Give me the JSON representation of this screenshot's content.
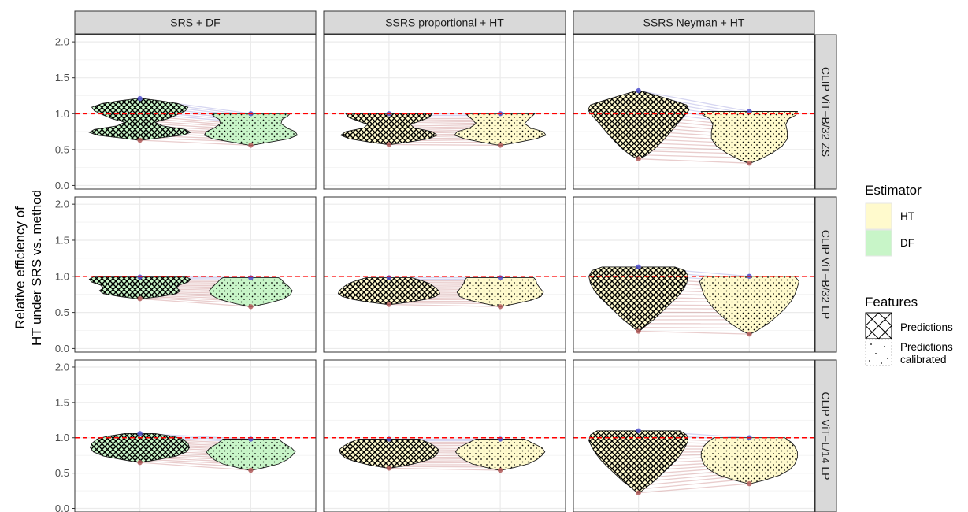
{
  "chart_data": {
    "type": "violin",
    "ylabel": [
      "Relative efficiency of",
      "HT under SRS vs. method"
    ],
    "ylim": [
      -0.05,
      2.1
    ],
    "yticks": [
      0.0,
      0.5,
      1.0,
      1.5,
      2.0
    ],
    "ytick_labels": [
      "0.0",
      "0.5",
      "1.0",
      "1.5",
      "2.0"
    ],
    "reference_line": {
      "y": 1.0,
      "color": "#ff0000",
      "style": "dashed"
    },
    "columns": [
      "SRS + DF",
      "SSRS proportional + HT",
      "SSRS Neyman + HT"
    ],
    "rows": [
      "CLIP ViT−B/32 ZS",
      "CLIP ViT−B/32 LP",
      "CLIP ViT−L/14 LP"
    ],
    "legends": [
      {
        "title": "Estimator",
        "items": [
          {
            "label": "HT",
            "fill": "#fffacd"
          },
          {
            "label": "DF",
            "fill": "#c8f5c8"
          }
        ]
      },
      {
        "title": "Features",
        "items": [
          {
            "label": "Predictions",
            "pattern": "crosshatch"
          },
          {
            "label": "Predictions calibrated",
            "lines": [
              "Predictions",
              "calibrated"
            ],
            "pattern": "dots"
          }
        ]
      }
    ],
    "panels": [
      {
        "row": 0,
        "col": 0,
        "estimator": "DF",
        "left": {
          "min": 0.63,
          "max": 1.21,
          "profile": [
            [
              0.63,
              0.02
            ],
            [
              0.66,
              0.35
            ],
            [
              0.7,
              0.85
            ],
            [
              0.74,
              1.0
            ],
            [
              0.78,
              0.9
            ],
            [
              0.83,
              0.45
            ],
            [
              0.88,
              0.3
            ],
            [
              0.93,
              0.55
            ],
            [
              0.98,
              0.72
            ],
            [
              1.04,
              0.9
            ],
            [
              1.09,
              0.95
            ],
            [
              1.14,
              0.75
            ],
            [
              1.18,
              0.4
            ],
            [
              1.21,
              0.05
            ]
          ]
        },
        "right": {
          "min": 0.56,
          "max": 1.0,
          "profile": [
            [
              0.56,
              0.02
            ],
            [
              0.6,
              0.35
            ],
            [
              0.65,
              0.75
            ],
            [
              0.7,
              0.92
            ],
            [
              0.75,
              0.88
            ],
            [
              0.8,
              0.72
            ],
            [
              0.86,
              0.6
            ],
            [
              0.92,
              0.62
            ],
            [
              0.96,
              0.72
            ],
            [
              1.0,
              0.78
            ]
          ]
        }
      },
      {
        "row": 0,
        "col": 1,
        "estimator": "HT",
        "left": {
          "min": 0.57,
          "max": 1.0,
          "profile": [
            [
              0.57,
              0.02
            ],
            [
              0.6,
              0.35
            ],
            [
              0.65,
              0.78
            ],
            [
              0.7,
              0.95
            ],
            [
              0.75,
              0.85
            ],
            [
              0.8,
              0.5
            ],
            [
              0.85,
              0.42
            ],
            [
              0.9,
              0.62
            ],
            [
              0.95,
              0.8
            ],
            [
              1.0,
              0.85
            ]
          ]
        },
        "right": {
          "min": 0.56,
          "max": 1.0,
          "profile": [
            [
              0.56,
              0.02
            ],
            [
              0.6,
              0.35
            ],
            [
              0.65,
              0.7
            ],
            [
              0.7,
              0.9
            ],
            [
              0.75,
              0.85
            ],
            [
              0.8,
              0.6
            ],
            [
              0.86,
              0.48
            ],
            [
              0.92,
              0.55
            ],
            [
              0.96,
              0.62
            ],
            [
              1.0,
              0.68
            ]
          ]
        }
      },
      {
        "row": 0,
        "col": 2,
        "estimator": "HT",
        "left": {
          "min": 0.37,
          "max": 1.32,
          "profile": [
            [
              0.37,
              0.02
            ],
            [
              0.42,
              0.15
            ],
            [
              0.5,
              0.3
            ],
            [
              0.6,
              0.45
            ],
            [
              0.7,
              0.58
            ],
            [
              0.8,
              0.7
            ],
            [
              0.9,
              0.82
            ],
            [
              0.98,
              0.92
            ],
            [
              1.05,
              1.0
            ],
            [
              1.12,
              0.95
            ],
            [
              1.18,
              0.7
            ],
            [
              1.24,
              0.42
            ],
            [
              1.29,
              0.18
            ],
            [
              1.32,
              0.02
            ]
          ]
        },
        "right": {
          "min": 0.31,
          "max": 1.03,
          "profile": [
            [
              0.31,
              0.02
            ],
            [
              0.36,
              0.2
            ],
            [
              0.45,
              0.45
            ],
            [
              0.55,
              0.65
            ],
            [
              0.65,
              0.75
            ],
            [
              0.75,
              0.75
            ],
            [
              0.85,
              0.72
            ],
            [
              0.93,
              0.78
            ],
            [
              0.98,
              0.92
            ],
            [
              1.03,
              0.95
            ]
          ]
        }
      },
      {
        "row": 1,
        "col": 0,
        "estimator": "DF",
        "left": {
          "min": 0.69,
          "max": 0.99,
          "profile": [
            [
              0.69,
              0.05
            ],
            [
              0.72,
              0.4
            ],
            [
              0.76,
              0.72
            ],
            [
              0.8,
              0.8
            ],
            [
              0.84,
              0.72
            ],
            [
              0.88,
              0.78
            ],
            [
              0.92,
              0.95
            ],
            [
              0.96,
              1.0
            ],
            [
              0.99,
              0.92
            ]
          ]
        },
        "right": {
          "min": 0.58,
          "max": 0.98,
          "profile": [
            [
              0.58,
              0.02
            ],
            [
              0.62,
              0.3
            ],
            [
              0.68,
              0.62
            ],
            [
              0.74,
              0.78
            ],
            [
              0.8,
              0.82
            ],
            [
              0.86,
              0.75
            ],
            [
              0.92,
              0.65
            ],
            [
              0.96,
              0.6
            ],
            [
              0.98,
              0.55
            ]
          ]
        }
      },
      {
        "row": 1,
        "col": 1,
        "estimator": "HT",
        "left": {
          "min": 0.61,
          "max": 0.98,
          "profile": [
            [
              0.61,
              0.03
            ],
            [
              0.64,
              0.38
            ],
            [
              0.68,
              0.72
            ],
            [
              0.72,
              0.92
            ],
            [
              0.76,
              1.0
            ],
            [
              0.8,
              0.98
            ],
            [
              0.85,
              0.9
            ],
            [
              0.9,
              0.8
            ],
            [
              0.94,
              0.65
            ],
            [
              0.98,
              0.45
            ]
          ]
        },
        "right": {
          "min": 0.58,
          "max": 0.98,
          "profile": [
            [
              0.58,
              0.02
            ],
            [
              0.62,
              0.3
            ],
            [
              0.67,
              0.62
            ],
            [
              0.72,
              0.8
            ],
            [
              0.78,
              0.85
            ],
            [
              0.84,
              0.78
            ],
            [
              0.9,
              0.72
            ],
            [
              0.95,
              0.7
            ],
            [
              0.98,
              0.66
            ]
          ]
        }
      },
      {
        "row": 1,
        "col": 2,
        "estimator": "HT",
        "left": {
          "min": 0.24,
          "max": 1.13,
          "profile": [
            [
              0.24,
              0.02
            ],
            [
              0.3,
              0.12
            ],
            [
              0.4,
              0.3
            ],
            [
              0.5,
              0.45
            ],
            [
              0.6,
              0.6
            ],
            [
              0.7,
              0.75
            ],
            [
              0.8,
              0.87
            ],
            [
              0.9,
              0.95
            ],
            [
              1.0,
              0.98
            ],
            [
              1.08,
              0.92
            ],
            [
              1.13,
              0.72
            ]
          ]
        },
        "right": {
          "min": 0.2,
          "max": 1.0,
          "profile": [
            [
              0.2,
              0.02
            ],
            [
              0.26,
              0.18
            ],
            [
              0.35,
              0.38
            ],
            [
              0.45,
              0.55
            ],
            [
              0.55,
              0.7
            ],
            [
              0.65,
              0.82
            ],
            [
              0.75,
              0.9
            ],
            [
              0.85,
              0.95
            ],
            [
              0.93,
              0.98
            ],
            [
              1.0,
              0.9
            ]
          ]
        }
      },
      {
        "row": 2,
        "col": 0,
        "estimator": "DF",
        "left": {
          "min": 0.65,
          "max": 1.06,
          "profile": [
            [
              0.65,
              0.02
            ],
            [
              0.69,
              0.35
            ],
            [
              0.74,
              0.72
            ],
            [
              0.8,
              0.92
            ],
            [
              0.86,
              0.98
            ],
            [
              0.92,
              0.95
            ],
            [
              0.98,
              0.85
            ],
            [
              1.02,
              0.65
            ],
            [
              1.06,
              0.3
            ]
          ]
        },
        "right": {
          "min": 0.54,
          "max": 0.98,
          "profile": [
            [
              0.54,
              0.02
            ],
            [
              0.58,
              0.28
            ],
            [
              0.63,
              0.55
            ],
            [
              0.69,
              0.72
            ],
            [
              0.75,
              0.82
            ],
            [
              0.8,
              0.88
            ],
            [
              0.86,
              0.8
            ],
            [
              0.92,
              0.65
            ],
            [
              0.98,
              0.55
            ]
          ]
        }
      },
      {
        "row": 2,
        "col": 1,
        "estimator": "HT",
        "left": {
          "min": 0.57,
          "max": 0.98,
          "profile": [
            [
              0.57,
              0.03
            ],
            [
              0.61,
              0.35
            ],
            [
              0.66,
              0.65
            ],
            [
              0.71,
              0.85
            ],
            [
              0.77,
              0.95
            ],
            [
              0.83,
              0.98
            ],
            [
              0.88,
              0.9
            ],
            [
              0.93,
              0.78
            ],
            [
              0.98,
              0.6
            ]
          ]
        },
        "right": {
          "min": 0.54,
          "max": 0.98,
          "profile": [
            [
              0.54,
              0.02
            ],
            [
              0.58,
              0.28
            ],
            [
              0.63,
              0.55
            ],
            [
              0.69,
              0.72
            ],
            [
              0.75,
              0.82
            ],
            [
              0.8,
              0.88
            ],
            [
              0.86,
              0.82
            ],
            [
              0.92,
              0.65
            ],
            [
              0.98,
              0.48
            ]
          ]
        }
      },
      {
        "row": 2,
        "col": 2,
        "estimator": "HT",
        "left": {
          "min": 0.22,
          "max": 1.1,
          "profile": [
            [
              0.22,
              0.02
            ],
            [
              0.28,
              0.12
            ],
            [
              0.38,
              0.3
            ],
            [
              0.48,
              0.45
            ],
            [
              0.58,
              0.6
            ],
            [
              0.68,
              0.74
            ],
            [
              0.78,
              0.85
            ],
            [
              0.88,
              0.93
            ],
            [
              0.96,
              0.98
            ],
            [
              1.04,
              0.95
            ],
            [
              1.1,
              0.82
            ]
          ]
        },
        "right": {
          "min": 0.35,
          "max": 1.0,
          "profile": [
            [
              0.35,
              0.02
            ],
            [
              0.4,
              0.3
            ],
            [
              0.47,
              0.6
            ],
            [
              0.55,
              0.8
            ],
            [
              0.63,
              0.9
            ],
            [
              0.72,
              0.95
            ],
            [
              0.8,
              0.95
            ],
            [
              0.88,
              0.9
            ],
            [
              0.94,
              0.82
            ],
            [
              1.0,
              0.7
            ]
          ]
        }
      }
    ]
  }
}
